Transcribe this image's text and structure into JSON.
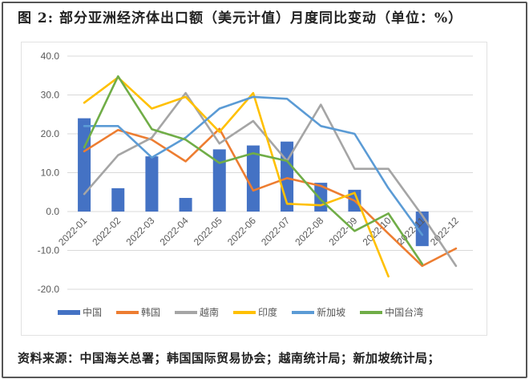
{
  "title": "图 2: 部分亚洲经济体出口额（美元计值）月度同比变动（单位：%）",
  "footer": "资料来源：中国海关总署；韩国国际贸易协会；越南统计局；新加坡统计局；",
  "chart_data": {
    "type": "bar+line",
    "title": "图 2: 部分亚洲经济体出口额（美元计值）月度同比变动（单位：%）",
    "xlabel": "",
    "ylabel": "",
    "ylim": [
      -20,
      40
    ],
    "yticks": [
      "40.0",
      "30.0",
      "20.0",
      "10.0",
      "0.0",
      "-10.0",
      "-20.0"
    ],
    "grid": true,
    "legend_position": "bottom",
    "categories": [
      "2022-01",
      "2022-02",
      "2022-03",
      "2022-04",
      "2022-05",
      "2022-06",
      "2022-07",
      "2022-08",
      "2022-09",
      "2022-10",
      "2022-11",
      "2022-12"
    ],
    "series": [
      {
        "name": "中国",
        "type": "bar",
        "color": "#4472C4",
        "values": [
          24.0,
          6.0,
          14.2,
          3.5,
          16.0,
          17.0,
          18.0,
          7.4,
          5.6,
          null,
          -8.9,
          null
        ]
      },
      {
        "name": "韩国",
        "type": "line",
        "color": "#ED7D31",
        "values": [
          15.5,
          21.0,
          18.5,
          12.9,
          21.3,
          5.4,
          8.6,
          6.6,
          2.8,
          -5.7,
          -14.0,
          -9.5
        ]
      },
      {
        "name": "越南",
        "type": "line",
        "color": "#A5A5A5",
        "values": [
          4.5,
          14.5,
          19.0,
          30.5,
          17.5,
          23.3,
          13.0,
          27.5,
          11.0,
          11.0,
          -1.0,
          -14.0
        ]
      },
      {
        "name": "印度",
        "type": "line",
        "color": "#FFC000",
        "values": [
          28.0,
          34.5,
          26.5,
          29.5,
          20.5,
          30.5,
          2.0,
          1.6,
          4.8,
          -16.7,
          null,
          null
        ]
      },
      {
        "name": "新加坡",
        "type": "line",
        "color": "#5B9BD5",
        "values": [
          22.0,
          22.0,
          13.9,
          19.0,
          26.5,
          29.5,
          29.0,
          22.0,
          20.0,
          6.0,
          -6.0,
          null
        ]
      },
      {
        "name": "中国台湾",
        "type": "line",
        "color": "#70AD47",
        "values": [
          16.5,
          34.8,
          21.2,
          18.5,
          12.5,
          15.0,
          13.0,
          3.0,
          -5.0,
          -0.5,
          -13.5,
          null
        ]
      }
    ]
  }
}
